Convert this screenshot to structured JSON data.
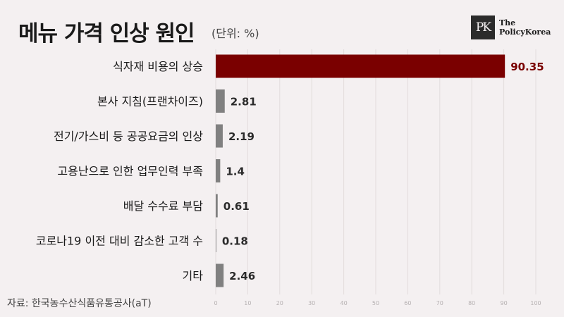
{
  "header": {
    "title": "메뉴 가격 인상 원인",
    "unit": "(단위: %)"
  },
  "logo": {
    "mark": "PK",
    "line1": "The",
    "line2": "PolicyKorea"
  },
  "source": "자료: 한국농수산식품유통공사(aT)",
  "colors": {
    "highlight": "#7a0000",
    "bar": "#808080",
    "background": "#f4f0f1"
  },
  "chart_data": {
    "type": "bar",
    "orientation": "horizontal",
    "categories": [
      "식자재 비용의 상승",
      "본사 지침(프랜차이즈)",
      "전기/가스비 등 공공요금의 인상",
      "고용난으로 인한 업무인력 부족",
      "배달 수수료 부담",
      "코로나19 이전 대비 감소한 고객 수",
      "기타"
    ],
    "values": [
      90.35,
      2.81,
      2.19,
      1.4,
      0.61,
      0.18,
      2.46
    ],
    "value_labels": [
      "90.35",
      "2.81",
      "2.19",
      "1.4",
      "0.61",
      "0.18",
      "2.46"
    ],
    "xlim": [
      0,
      100
    ],
    "xticks": [
      0,
      10,
      20,
      30,
      40,
      50,
      60,
      70,
      80,
      90,
      100
    ],
    "grid": true
  }
}
